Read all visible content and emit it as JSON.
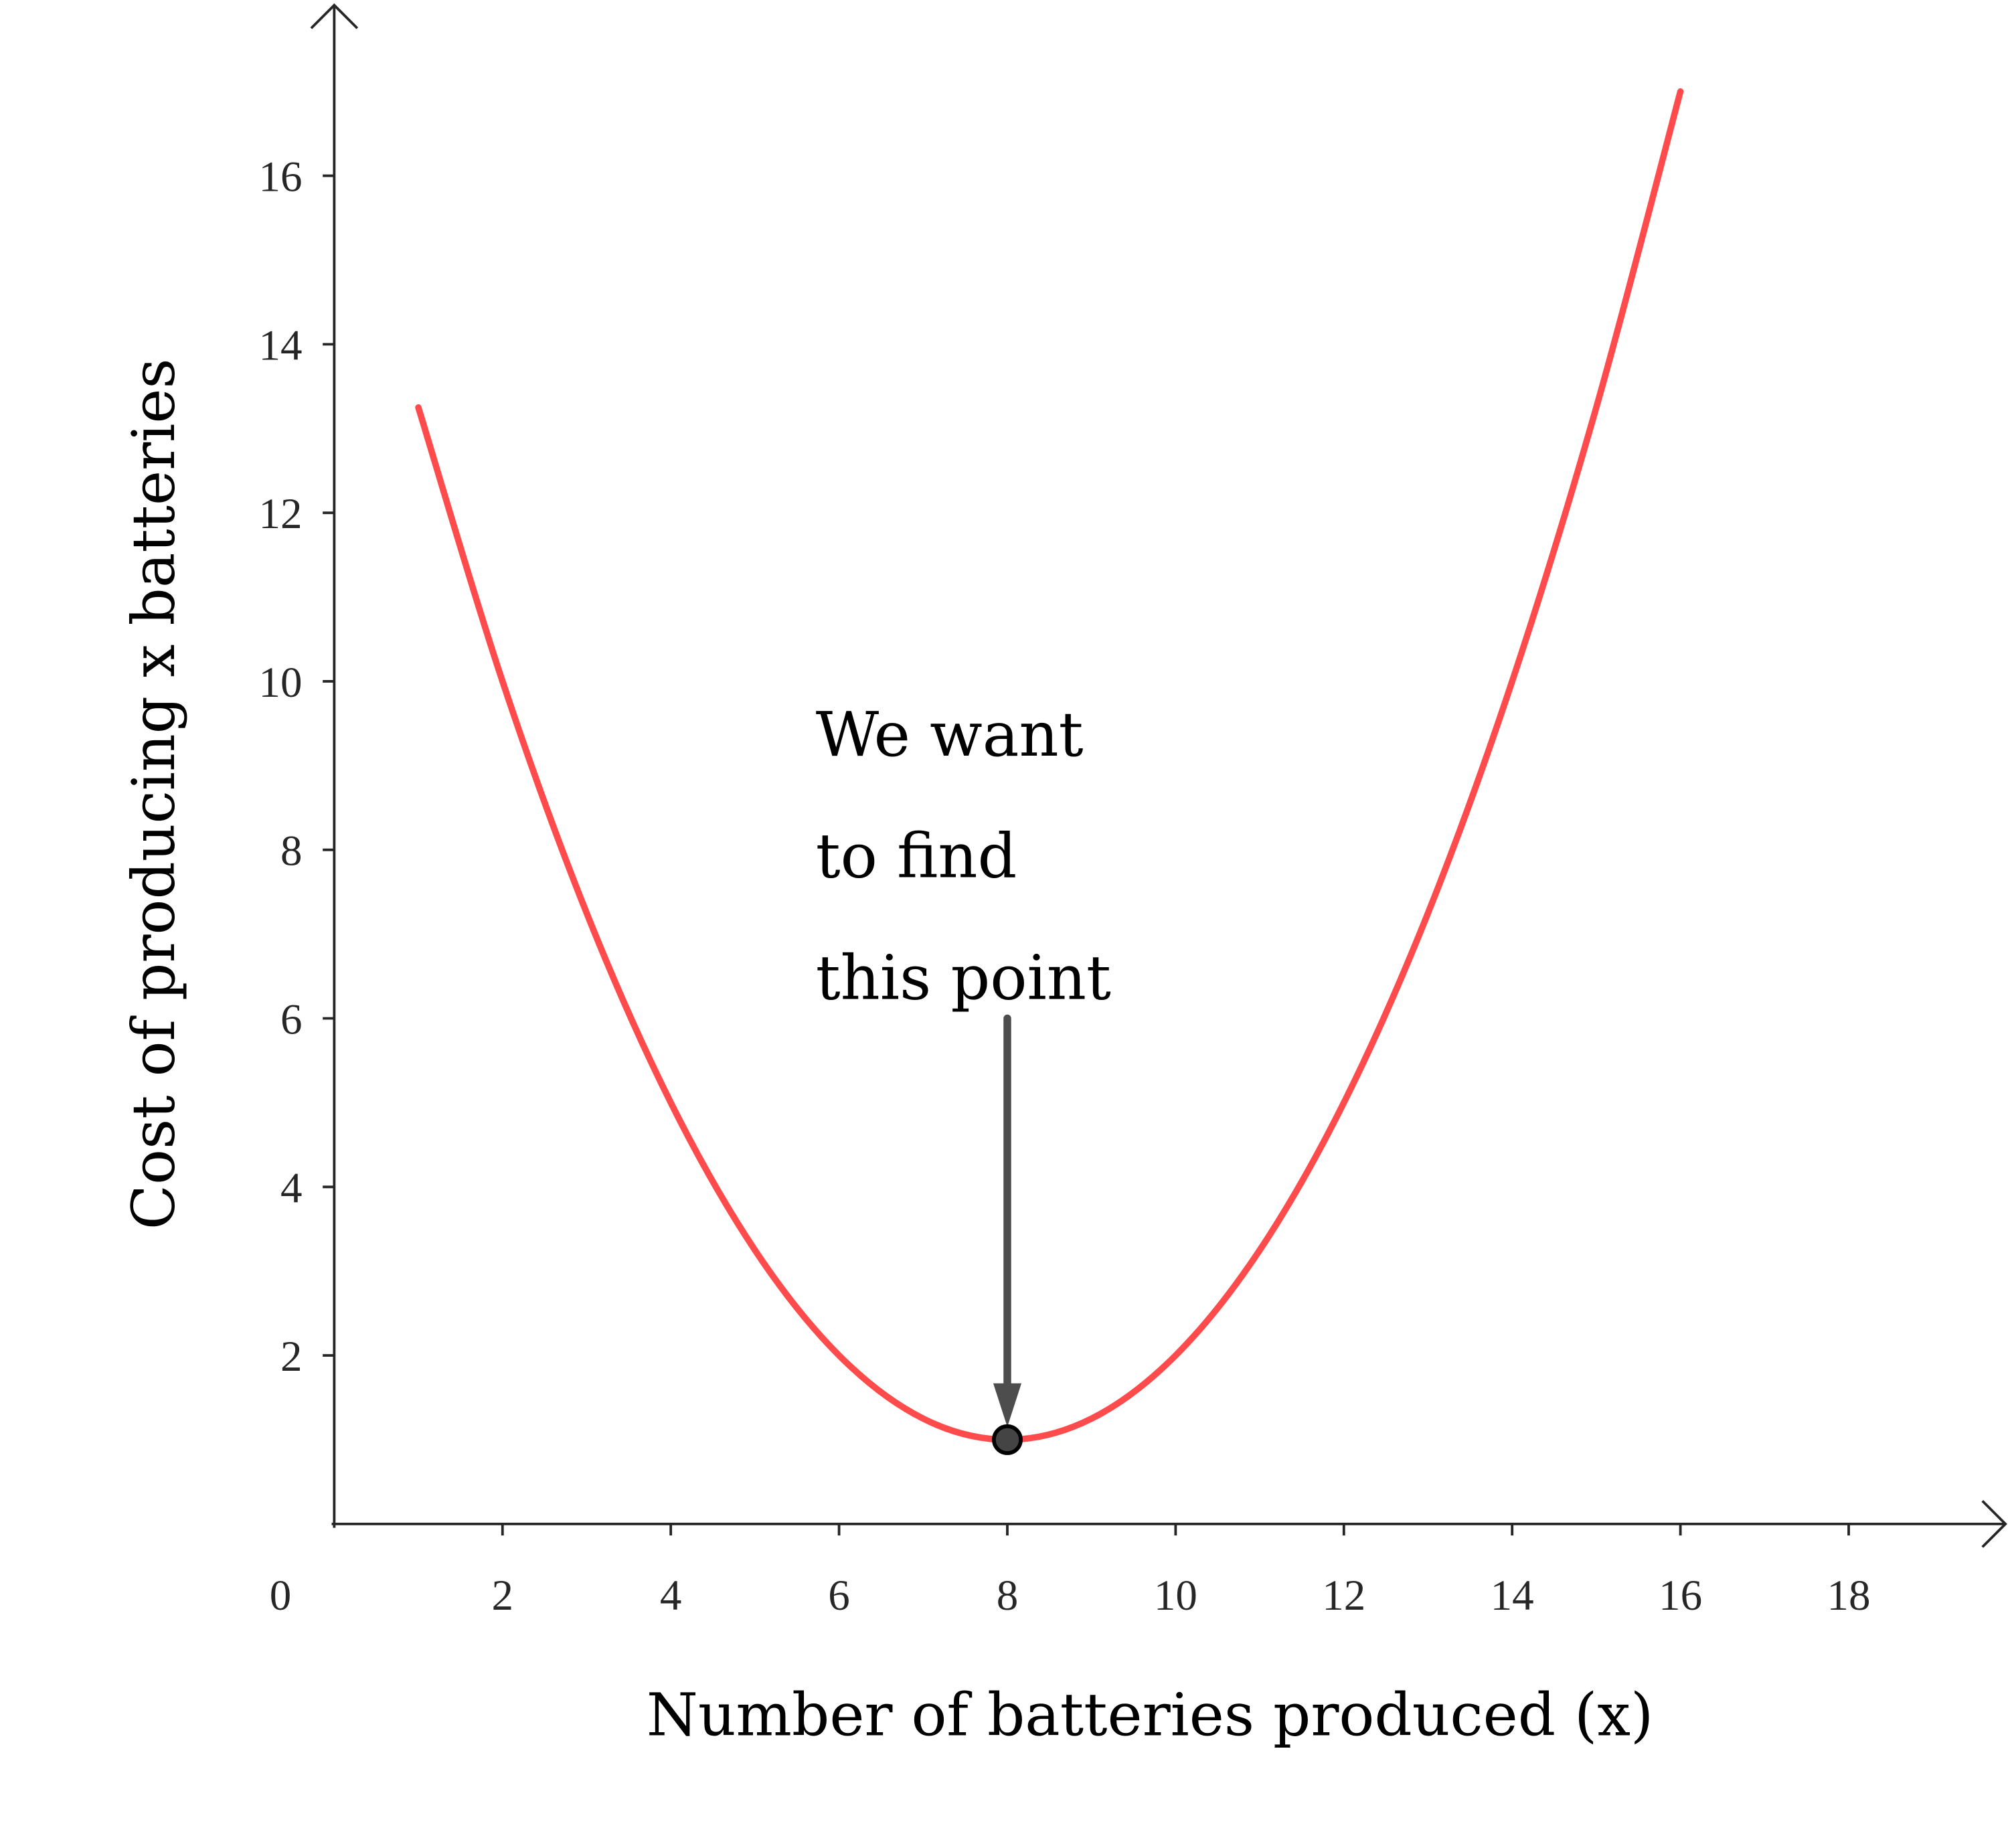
{
  "chart_data": {
    "type": "line",
    "xlabel": "Number of batteries produced (x)",
    "ylabel": "Cost of producing x batteries",
    "xlim": [
      0,
      19.7
    ],
    "ylim": [
      0,
      18
    ],
    "x_ticks": [
      "0",
      "2",
      "4",
      "6",
      "8",
      "10",
      "12",
      "14",
      "16",
      "18"
    ],
    "y_ticks": [
      "2",
      "4",
      "6",
      "8",
      "10",
      "12",
      "14",
      "16"
    ],
    "grid": false,
    "series": [
      {
        "color": "#ff4b4b",
        "x": [
          1,
          2,
          3,
          4,
          5,
          6,
          7,
          8,
          9,
          10,
          11,
          12,
          13,
          14,
          15,
          16
        ],
        "y": [
          13.25,
          10,
          7.25,
          5,
          3.25,
          2,
          1.25,
          1,
          1.25,
          2,
          3.25,
          5,
          7.25,
          10,
          13.25,
          17
        ]
      }
    ],
    "highlight_point": {
      "x": 8,
      "y": 1,
      "color": "#444444"
    },
    "annotation": {
      "lines": [
        "We want",
        "to find",
        "this point"
      ],
      "arrow_from": {
        "x": 8,
        "y": 6
      },
      "arrow_to": {
        "x": 8,
        "y": 1
      },
      "arrow_color": "#4d4d4d"
    }
  }
}
